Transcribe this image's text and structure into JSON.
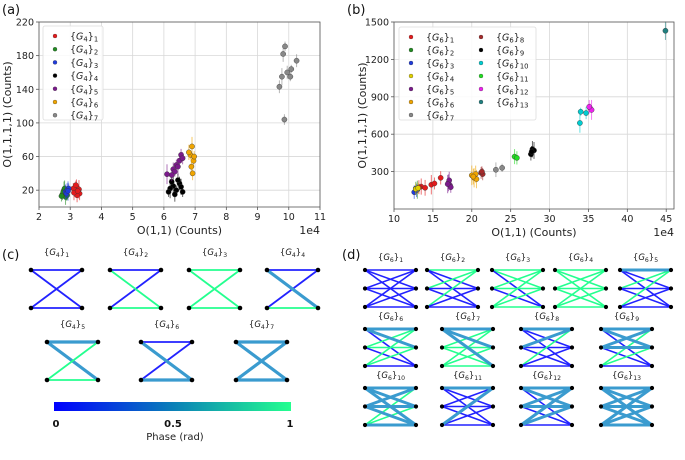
{
  "panels": {
    "a": "(a)",
    "b": "(b)",
    "c": "(c)",
    "d": "(d)"
  },
  "colors": {
    "phase_low": "#0000ff",
    "phase_mid": "#3a9bcf",
    "phase_high": "#24ff8f",
    "grid": "#d6d6d6",
    "axis": "#555555",
    "node": "#000000"
  },
  "chart_data": [
    {
      "id": "a",
      "type": "scatter",
      "title": "",
      "xlabel": "O(1,1) (Counts)",
      "ylabel": "O(1,1,1,1) (Counts)",
      "x_multiplier": "1e4",
      "xlim": [
        2,
        11
      ],
      "ylim": [
        0,
        220
      ],
      "xticks": [
        2,
        3,
        4,
        5,
        6,
        7,
        8,
        9,
        10,
        11
      ],
      "yticks": [
        20,
        60,
        100,
        140,
        180,
        220
      ],
      "grid": true,
      "error_bars": true,
      "legend_position": "top-left",
      "series": [
        {
          "name": "{G4}1",
          "color": "#e41a1c",
          "points": [
            [
              3.15,
              20
            ],
            [
              3.2,
              24
            ],
            [
              3.25,
              18
            ],
            [
              3.1,
              22
            ],
            [
              3.3,
              16
            ],
            [
              3.22,
              14
            ],
            [
              3.18,
              26
            ],
            [
              3.28,
              21
            ],
            [
              3.12,
              17
            ],
            [
              3.24,
              19
            ]
          ]
        },
        {
          "name": "{G4}2",
          "color": "#228b22",
          "points": [
            [
              2.75,
              15
            ],
            [
              2.8,
              20
            ],
            [
              2.85,
              12
            ],
            [
              2.78,
              18
            ],
            [
              2.88,
              16
            ],
            [
              2.72,
              13
            ],
            [
              2.82,
              22
            ],
            [
              2.9,
              14
            ]
          ]
        },
        {
          "name": "{G4}3",
          "color": "#1f3bdb",
          "points": [
            [
              2.85,
              18
            ],
            [
              2.9,
              20
            ],
            [
              2.95,
              22
            ],
            [
              2.88,
              16
            ],
            [
              2.93,
              19
            ]
          ]
        },
        {
          "name": "{G4}4",
          "color": "#000000",
          "points": [
            [
              6.3,
              25
            ],
            [
              6.4,
              20
            ],
            [
              6.5,
              28
            ],
            [
              6.2,
              22
            ],
            [
              6.6,
              18
            ],
            [
              6.45,
              32
            ],
            [
              6.35,
              15
            ],
            [
              6.55,
              24
            ],
            [
              6.25,
              30
            ],
            [
              6.15,
              18
            ]
          ]
        },
        {
          "name": "{G4}5",
          "color": "#7b1a8c",
          "points": [
            [
              6.1,
              39
            ],
            [
              6.3,
              45
            ],
            [
              6.4,
              50
            ],
            [
              6.5,
              55
            ],
            [
              6.55,
              62
            ],
            [
              6.35,
              42
            ],
            [
              6.45,
              48
            ],
            [
              6.25,
              38
            ],
            [
              6.6,
              58
            ]
          ]
        },
        {
          "name": "{G4}6",
          "color": "#f0a500",
          "points": [
            [
              6.85,
              62
            ],
            [
              6.9,
              72
            ],
            [
              6.95,
              55
            ],
            [
              6.88,
              48
            ],
            [
              6.92,
              40
            ],
            [
              6.97,
              60
            ],
            [
              6.8,
              65
            ]
          ]
        },
        {
          "name": "{G4}7",
          "color": "#888888",
          "points": [
            [
              9.7,
              143
            ],
            [
              9.78,
              155
            ],
            [
              9.82,
              182
            ],
            [
              9.88,
              191
            ],
            [
              9.86,
              104
            ],
            [
              9.95,
              160
            ],
            [
              10.05,
              155
            ],
            [
              10.08,
              164
            ],
            [
              10.25,
              174
            ]
          ]
        }
      ]
    },
    {
      "id": "b",
      "type": "scatter",
      "title": "",
      "xlabel": "O(1,1) (Counts)",
      "ylabel": "O(1,1,1,1) (Counts)",
      "x_multiplier": "1e4",
      "xlim": [
        10,
        46
      ],
      "ylim": [
        0,
        1500
      ],
      "xticks": [
        10,
        15,
        20,
        25,
        30,
        35,
        40,
        45
      ],
      "yticks": [
        300,
        600,
        900,
        1200,
        1500
      ],
      "grid": true,
      "error_bars": true,
      "legend_position": "top-left",
      "legend_columns": 2,
      "series": [
        {
          "name": "{G6}1",
          "color": "#e41a1c",
          "points": [
            [
              13.5,
              180
            ],
            [
              14,
              170
            ],
            [
              14.8,
              195
            ],
            [
              15.2,
              205
            ],
            [
              16,
              250
            ],
            [
              13.2,
              175
            ]
          ]
        },
        {
          "name": "{G6}2",
          "color": "#228b22",
          "points": [
            [
              12.8,
              165
            ],
            [
              13,
              155
            ]
          ]
        },
        {
          "name": "{G6}3",
          "color": "#1f3bdb",
          "points": [
            [
              12.6,
              135
            ],
            [
              12.9,
              150
            ]
          ]
        },
        {
          "name": "{G6}4",
          "color": "#e0d000",
          "points": [
            [
              12.8,
              160
            ],
            [
              13.1,
              168
            ]
          ]
        },
        {
          "name": "{G6}5",
          "color": "#7b1a8c",
          "points": [
            [
              17,
              210
            ],
            [
              17.2,
              190
            ],
            [
              17.3,
              175
            ],
            [
              17.1,
              230
            ],
            [
              16.9,
              200
            ]
          ]
        },
        {
          "name": "{G6}6",
          "color": "#f0a500",
          "points": [
            [
              20,
              270
            ],
            [
              20.3,
              250
            ],
            [
              20.6,
              240
            ],
            [
              20.5,
              280
            ],
            [
              20.2,
              260
            ]
          ]
        },
        {
          "name": "{G6}7",
          "color": "#888888",
          "points": [
            [
              23.1,
              315
            ],
            [
              23.9,
              330
            ]
          ]
        },
        {
          "name": "{G6}8",
          "color": "#a52a2a",
          "points": [
            [
              21.2,
              290
            ],
            [
              21.4,
              280
            ],
            [
              21.3,
              300
            ]
          ]
        },
        {
          "name": "{G6}9",
          "color": "#000000",
          "points": [
            [
              27.6,
              440
            ],
            [
              27.8,
              480
            ],
            [
              28,
              470
            ],
            [
              27.7,
              460
            ]
          ]
        },
        {
          "name": "{G6}10",
          "color": "#00ced1",
          "points": [
            [
              33.9,
              690
            ],
            [
              34,
              780
            ],
            [
              34.7,
              770
            ]
          ]
        },
        {
          "name": "{G6}11",
          "color": "#22dd22",
          "points": [
            [
              25.5,
              420
            ],
            [
              25.8,
              410
            ]
          ]
        },
        {
          "name": "{G6}12",
          "color": "#ee22ee",
          "points": [
            [
              35.2,
              810
            ],
            [
              35.4,
              795
            ],
            [
              35.1,
              820
            ]
          ]
        },
        {
          "name": "{G6}13",
          "color": "#1f8080",
          "points": [
            [
              44.9,
              1430
            ]
          ]
        }
      ]
    }
  ],
  "graphs_c": {
    "caption_label": "(c)",
    "items": [
      {
        "label": "{G4}1",
        "edges": [
          [
            "a0",
            "b0",
            0
          ],
          [
            "a0",
            "b1",
            0
          ],
          [
            "a1",
            "b0",
            0
          ],
          [
            "a1",
            "b1",
            0
          ]
        ]
      },
      {
        "label": "{G4}2",
        "edges": [
          [
            "a0",
            "b0",
            0
          ],
          [
            "a1",
            "b0",
            0
          ],
          [
            "a0",
            "b1",
            1
          ],
          [
            "a1",
            "b1",
            1
          ]
        ]
      },
      {
        "label": "{G4}3",
        "edges": [
          [
            "a0",
            "b0",
            1
          ],
          [
            "a0",
            "b1",
            1
          ],
          [
            "a1",
            "b0",
            1
          ],
          [
            "a1",
            "b1",
            1
          ]
        ]
      },
      {
        "label": "{G4}4",
        "edges": [
          [
            "a0",
            "b0",
            0
          ],
          [
            "a1",
            "b0",
            0
          ],
          [
            "a0",
            "b1",
            0.5
          ],
          [
            "a1",
            "b1",
            1
          ]
        ]
      },
      {
        "label": "{G4}5",
        "edges": [
          [
            "a0",
            "b0",
            0.5
          ],
          [
            "a0",
            "b1",
            0.5
          ],
          [
            "a1",
            "b0",
            1
          ],
          [
            "a1",
            "b1",
            1
          ]
        ]
      },
      {
        "label": "{G4}6",
        "edges": [
          [
            "a0",
            "b0",
            0
          ],
          [
            "a1",
            "b0",
            0
          ],
          [
            "a0",
            "b1",
            0.5
          ],
          [
            "a1",
            "b1",
            0.5
          ]
        ]
      },
      {
        "label": "{G4}7",
        "edges": [
          [
            "a0",
            "b0",
            0.5
          ],
          [
            "a0",
            "b1",
            0.5
          ],
          [
            "a1",
            "b0",
            0.5
          ],
          [
            "a1",
            "b1",
            0.5
          ]
        ]
      }
    ]
  },
  "colorbar": {
    "label": "Phase (rad)",
    "ticks": [
      "0",
      "0.5",
      "1"
    ],
    "range": [
      0,
      1
    ]
  },
  "graphs_d": {
    "caption_label": "(d)",
    "items": [
      {
        "label": "{G6}1",
        "phases": [
          0,
          0,
          0,
          0,
          0,
          0,
          0,
          0,
          0
        ]
      },
      {
        "label": "{G6}2",
        "phases": [
          1,
          0,
          0,
          1,
          0,
          0,
          1,
          0,
          0
        ]
      },
      {
        "label": "{G6}3",
        "phases": [
          1,
          1,
          0,
          1,
          1,
          0,
          1,
          1,
          1
        ]
      },
      {
        "label": "{G6}4",
        "phases": [
          1,
          1,
          1,
          1,
          1,
          1,
          1,
          1,
          1
        ]
      },
      {
        "label": "{G6}5",
        "phases": [
          0.5,
          0,
          0,
          1,
          0,
          0,
          1,
          0,
          0
        ]
      },
      {
        "label": "{G6}6",
        "phases": [
          0.5,
          0.5,
          0,
          1,
          1,
          0,
          1,
          1,
          0
        ]
      },
      {
        "label": "{G6}7",
        "phases": [
          0.5,
          0.5,
          0.5,
          1,
          1,
          1,
          1,
          1,
          1
        ]
      },
      {
        "label": "{G6}8",
        "phases": [
          0.5,
          0,
          0,
          0.5,
          0,
          0,
          1,
          0,
          0
        ]
      },
      {
        "label": "{G6}9",
        "phases": [
          0.5,
          0.5,
          0,
          0.5,
          0.5,
          0,
          1,
          1,
          0
        ]
      },
      {
        "label": "{G6}10",
        "phases": [
          0.5,
          0.5,
          0.5,
          0.5,
          0.5,
          0.5,
          1,
          1,
          0.5
        ]
      },
      {
        "label": "{G6}11",
        "phases": [
          0.5,
          0,
          0,
          0,
          0,
          0,
          0.5,
          0,
          0
        ]
      },
      {
        "label": "{G6}12",
        "phases": [
          0.5,
          0.5,
          0,
          0.5,
          0.5,
          0,
          0.5,
          0.5,
          0
        ]
      },
      {
        "label": "{G6}13",
        "phases": [
          0.5,
          0.5,
          0.5,
          0.5,
          0.5,
          0.5,
          0.5,
          0.5,
          0.5
        ]
      }
    ]
  }
}
